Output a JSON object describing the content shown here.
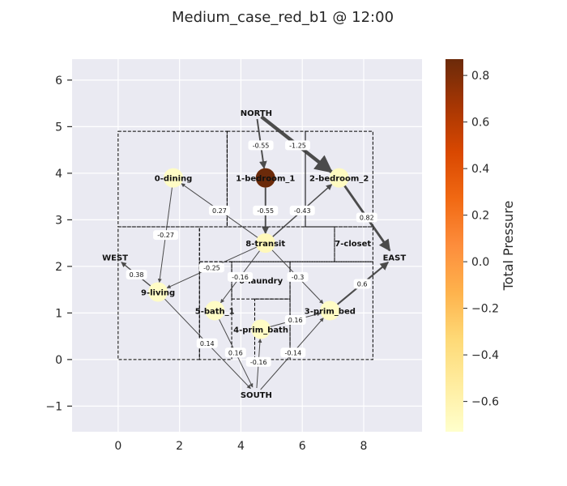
{
  "chart_data": {
    "type": "network",
    "title": "Medium_case_red_b1 @ 12:00",
    "xlim": [
      -1.5,
      9.9
    ],
    "ylim": [
      -1.55,
      6.45
    ],
    "xticks": [
      0,
      2,
      4,
      6,
      8
    ],
    "yticks": [
      -1,
      0,
      1,
      2,
      3,
      4,
      5,
      6
    ],
    "grid": true,
    "colorbar": {
      "label": "Total Pressure",
      "min": -0.73,
      "max": 0.87,
      "ticks": [
        0.8,
        0.6,
        0.4,
        0.2,
        0.0,
        -0.2,
        -0.4,
        -0.6
      ],
      "tick_labels": [
        "0.8",
        "0.6",
        "0.4",
        "0.2",
        "0.0",
        "−0.2",
        "−0.4",
        "−0.6"
      ]
    },
    "rooms": [
      {
        "x0": 0,
        "y0": 2.85,
        "x1": 3.55,
        "y1": 4.9
      },
      {
        "x0": 3.55,
        "y0": 2.85,
        "x1": 6.1,
        "y1": 4.9
      },
      {
        "x0": 6.1,
        "y0": 2.85,
        "x1": 8.3,
        "y1": 4.9
      },
      {
        "x0": 0,
        "y0": 0,
        "x1": 2.65,
        "y1": 2.85
      },
      {
        "x0": 2.65,
        "y0": 2.1,
        "x1": 7.05,
        "y1": 2.85
      },
      {
        "x0": 7.05,
        "y0": 2.1,
        "x1": 8.3,
        "y1": 2.85
      },
      {
        "x0": 3.7,
        "y0": 1.3,
        "x1": 5.6,
        "y1": 2.1
      },
      {
        "x0": 2.65,
        "y0": 0,
        "x1": 3.7,
        "y1": 2.1
      },
      {
        "x0": 4.45,
        "y0": 0,
        "x1": 5.6,
        "y1": 1.3
      },
      {
        "x0": 5.6,
        "y0": 0,
        "x1": 8.3,
        "y1": 2.1
      }
    ],
    "nodes": [
      {
        "label": "0-dining",
        "x": 1.8,
        "y": 3.9,
        "pressure": -0.7,
        "room": true
      },
      {
        "label": "1-bedroom_1",
        "x": 4.8,
        "y": 3.9,
        "pressure": 0.87,
        "room": true
      },
      {
        "label": "2-bedroom_2",
        "x": 7.2,
        "y": 3.9,
        "pressure": -0.68,
        "room": true
      },
      {
        "label": "8-transit",
        "x": 4.8,
        "y": 2.5,
        "pressure": -0.65,
        "room": true
      },
      {
        "label": "7-closet",
        "x": 7.65,
        "y": 2.5,
        "pressure": -0.73,
        "room": false
      },
      {
        "label": "9-living",
        "x": 1.3,
        "y": 1.45,
        "pressure": -0.7,
        "room": true
      },
      {
        "label": "6-laundry",
        "x": 4.65,
        "y": 1.7,
        "pressure": -0.73,
        "room": false
      },
      {
        "label": "5-bath_1",
        "x": 3.15,
        "y": 1.05,
        "pressure": -0.7,
        "room": true
      },
      {
        "label": "4-prim_bath",
        "x": 4.65,
        "y": 0.65,
        "pressure": -0.7,
        "room": true
      },
      {
        "label": "3-prim_bed",
        "x": 6.9,
        "y": 1.05,
        "pressure": -0.7,
        "room": true
      },
      {
        "label": "NORTH",
        "x": 4.5,
        "y": 5.3,
        "pressure": null,
        "room": false
      },
      {
        "label": "EAST",
        "x": 9.0,
        "y": 2.2,
        "pressure": null,
        "room": false
      },
      {
        "label": "WEST",
        "x": -0.1,
        "y": 2.2,
        "pressure": null,
        "room": false
      },
      {
        "label": "SOUTH",
        "x": 4.5,
        "y": -0.75,
        "pressure": null,
        "room": false
      }
    ],
    "edges": [
      {
        "from": "NORTH",
        "to": "1-bedroom_1",
        "value": -0.55
      },
      {
        "from": "NORTH",
        "to": "2-bedroom_2",
        "value": -1.25
      },
      {
        "from": "2-bedroom_2",
        "to": "EAST",
        "value": 0.82
      },
      {
        "from": "1-bedroom_1",
        "to": "8-transit",
        "value": -0.55
      },
      {
        "from": "8-transit",
        "to": "2-bedroom_2",
        "value": -0.43
      },
      {
        "from": "8-transit",
        "to": "0-dining",
        "value": 0.27
      },
      {
        "from": "0-dining",
        "to": "9-living",
        "value": -0.27
      },
      {
        "from": "9-living",
        "to": "WEST",
        "value": 0.38
      },
      {
        "from": "8-transit",
        "to": "9-living",
        "value": -0.25
      },
      {
        "from": "8-transit",
        "to": "5-bath_1",
        "value": -0.16
      },
      {
        "from": "8-transit",
        "to": "3-prim_bed",
        "value": -0.3
      },
      {
        "from": "3-prim_bed",
        "to": "EAST",
        "value": 0.6
      },
      {
        "from": "9-living",
        "to": "SOUTH",
        "value": 0.14
      },
      {
        "from": "5-bath_1",
        "to": "SOUTH",
        "value": 0.16
      },
      {
        "from": "SOUTH",
        "to": "4-prim_bath",
        "value": -0.16
      },
      {
        "from": "4-prim_bath",
        "to": "3-prim_bed",
        "value": 0.16
      },
      {
        "from": "SOUTH",
        "to": "3-prim_bed",
        "value": -0.14
      }
    ],
    "colors": {
      "background": "#eaeaf2",
      "grid": "#ffffff",
      "edge": "#3a3a3a",
      "room_border": "#000000",
      "colormap": [
        "#ffffcc",
        "#ffeda0",
        "#fed976",
        "#feb24c",
        "#fd8d3c",
        "#f16913",
        "#d94801",
        "#a63603",
        "#6b2a0a"
      ]
    }
  }
}
